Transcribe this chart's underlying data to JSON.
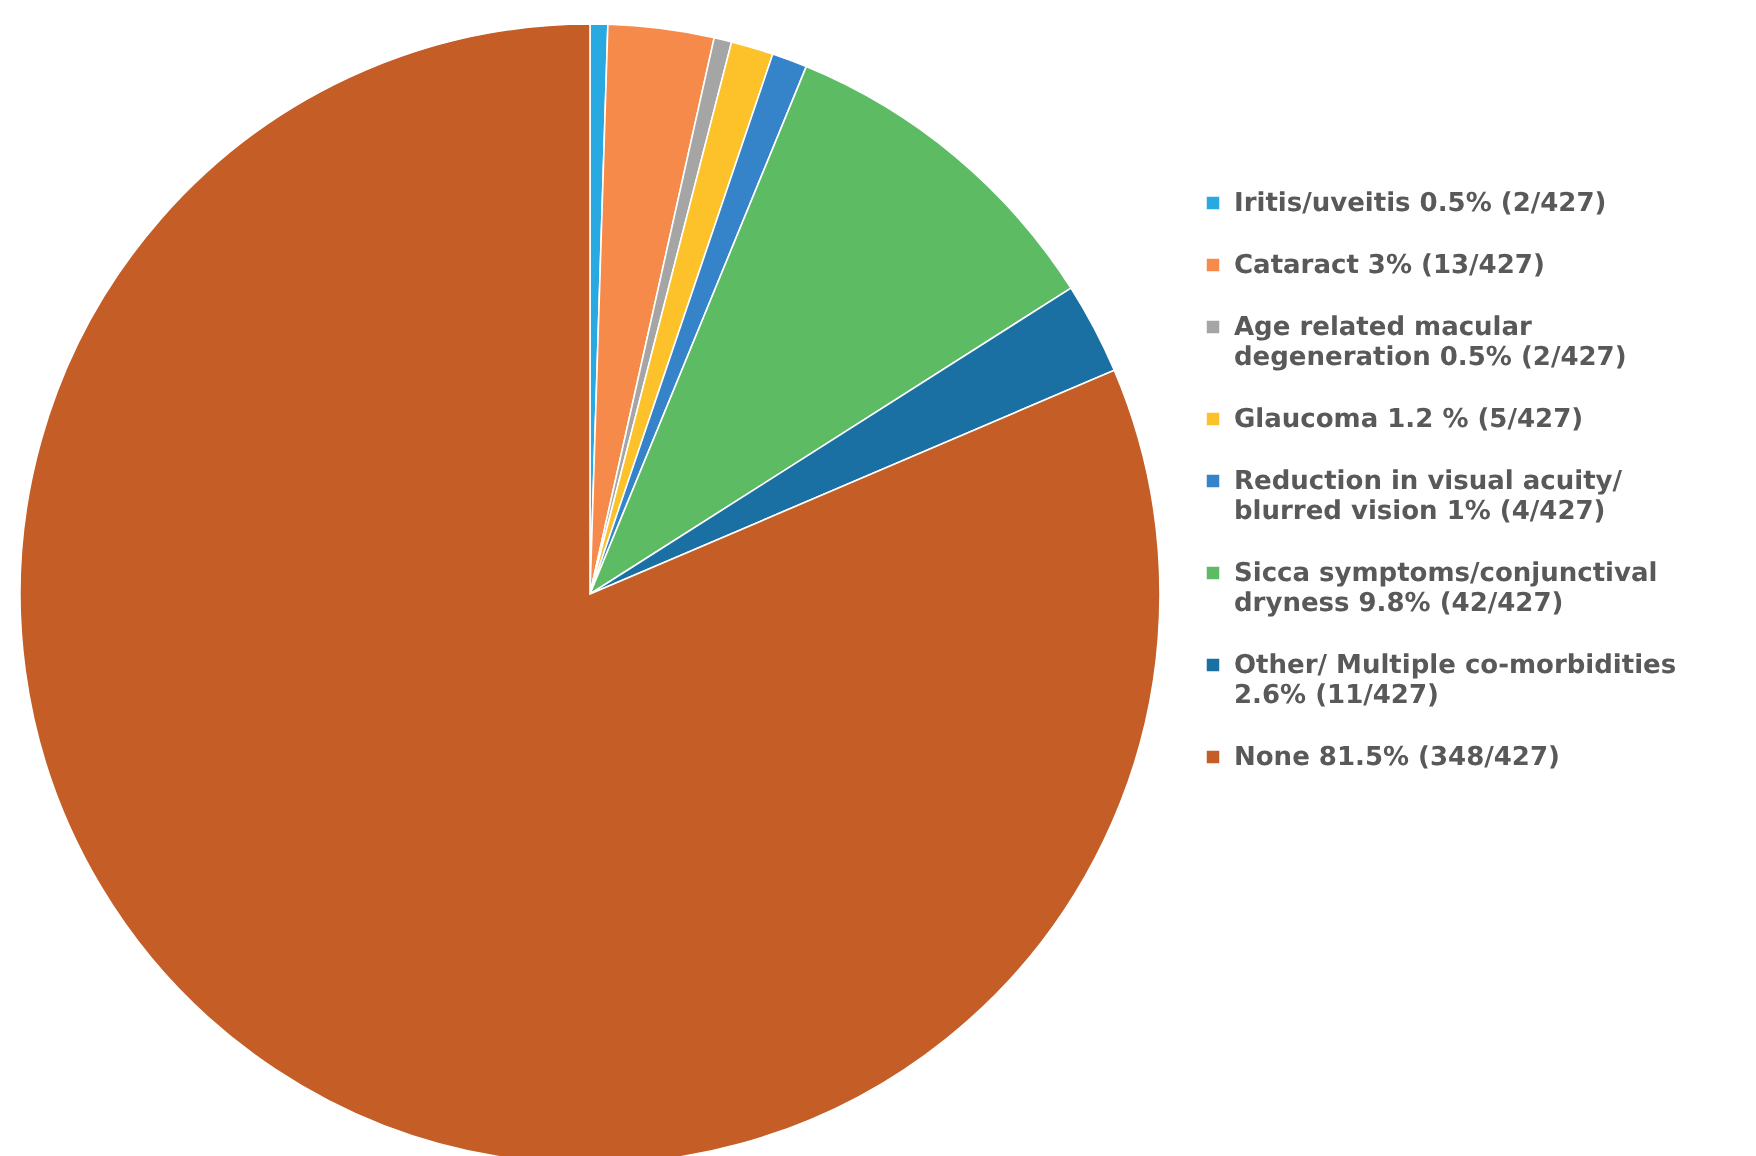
{
  "chart_data": {
    "type": "pie",
    "categories": [
      "Iritis/uveitis 0.5% (2/427)",
      "Cataract  3% (13/427)",
      "Age related macular\ndegeneration 0.5% (2/427)",
      "Glaucoma 1.2 % (5/427)",
      "Reduction in visual acuity/\nblurred vision 1% (4/427)",
      "Sicca symptoms/conjunctival\ndryness 9.8% (42/427)",
      "Other/ Multiple co-morbidities\n2.6% (11/427)",
      "None 81.5% (348/427)"
    ],
    "values": [
      0.5,
      3,
      0.5,
      1.2,
      1,
      9.8,
      2.6,
      81.5
    ],
    "colors": [
      "#29a9e1",
      "#f58a4b",
      "#a5a5a5",
      "#fdc12a",
      "#3583c9",
      "#5cbb63",
      "#1a6fa3",
      "#c55e26"
    ],
    "legend": "right"
  }
}
